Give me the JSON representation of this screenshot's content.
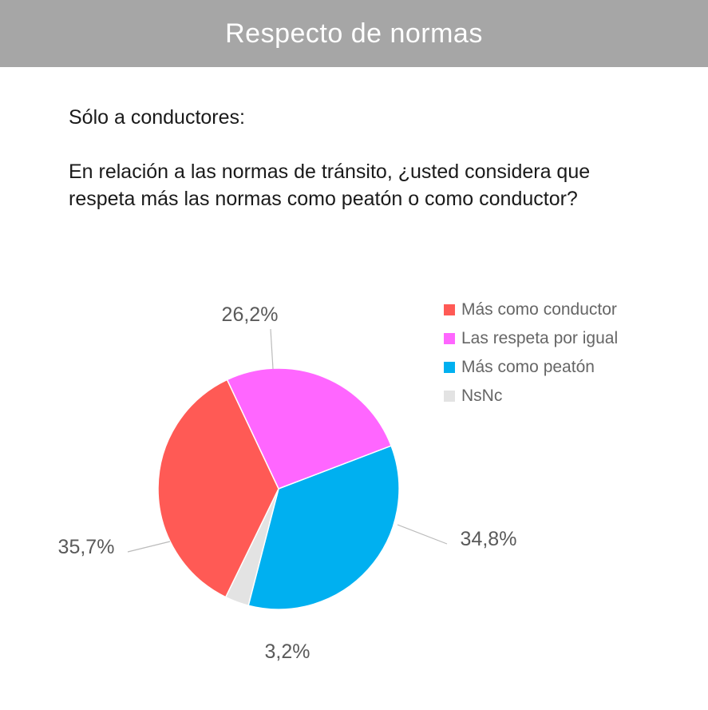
{
  "header": {
    "title": "Respecto de normas"
  },
  "subtitle": "Sólo a conductores:",
  "question": "En relación a las normas de tránsito, ¿usted considera que respeta más las normas como peatón o como conductor?",
  "chart_data": {
    "type": "pie",
    "title": "",
    "categories": [
      "Más como conductor",
      "Las respeta por igual",
      "Más como peatón",
      "NsNc"
    ],
    "values": [
      35.7,
      26.2,
      34.8,
      3.2
    ],
    "labels": [
      "35,7%",
      "26,2%",
      "34,8%",
      "3,2%"
    ],
    "colors": [
      "#ff5a55",
      "#ff66ff",
      "#00b0f0",
      "#e3e3e3"
    ],
    "legend": "right"
  }
}
